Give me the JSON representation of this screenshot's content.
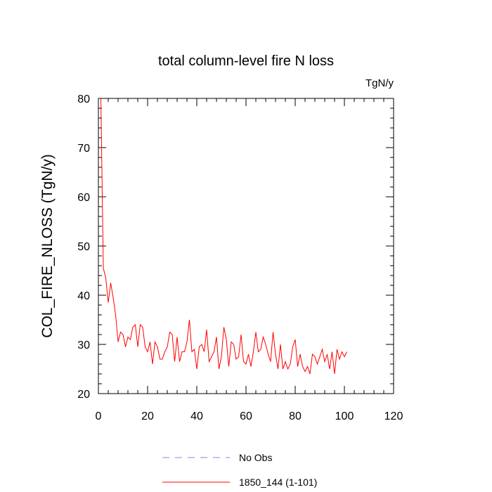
{
  "chart_data": {
    "type": "line",
    "title": "total column-level fire N loss",
    "units_label": "TgN/y",
    "xlabel": "",
    "ylabel": "COL_FIRE_NLOSS  (TgN/y)",
    "xlim": [
      0,
      120
    ],
    "ylim": [
      20,
      80
    ],
    "x_ticks": [
      0,
      20,
      40,
      60,
      80,
      100,
      120
    ],
    "y_ticks": [
      20,
      30,
      40,
      50,
      60,
      70,
      80
    ],
    "x_tick_labels": [
      "0",
      "20",
      "40",
      "60",
      "80",
      "100",
      "120"
    ],
    "y_tick_labels": [
      "20",
      "30",
      "40",
      "50",
      "60",
      "70",
      "80"
    ],
    "grid": false,
    "legend_position": "bottom-center",
    "series": [
      {
        "name": "No Obs",
        "color": "#8080ff",
        "style": "dashed",
        "x": [],
        "values": []
      },
      {
        "name": "1850_144 (1-101)",
        "color": "#ff0000",
        "style": "solid",
        "x": [
          1,
          2,
          3,
          4,
          5,
          6,
          7,
          8,
          9,
          10,
          11,
          12,
          13,
          14,
          15,
          16,
          17,
          18,
          19,
          20,
          21,
          22,
          23,
          24,
          25,
          26,
          27,
          28,
          29,
          30,
          31,
          32,
          33,
          34,
          35,
          36,
          37,
          38,
          39,
          40,
          41,
          42,
          43,
          44,
          45,
          46,
          47,
          48,
          49,
          50,
          51,
          52,
          53,
          54,
          55,
          56,
          57,
          58,
          59,
          60,
          61,
          62,
          63,
          64,
          65,
          66,
          67,
          68,
          69,
          70,
          71,
          72,
          73,
          74,
          75,
          76,
          77,
          78,
          79,
          80,
          81,
          82,
          83,
          84,
          85,
          86,
          87,
          88,
          89,
          90,
          91,
          92,
          93,
          94,
          95,
          96,
          97,
          98,
          99,
          100,
          101
        ],
        "values": [
          80,
          45.5,
          43.5,
          38.5,
          42.5,
          39.5,
          36,
          30.5,
          32.5,
          32,
          29.5,
          31.5,
          31,
          33.5,
          34,
          29.5,
          34,
          33.5,
          29.5,
          28.5,
          30.5,
          26,
          30.5,
          29.5,
          27,
          27,
          28.5,
          29.5,
          32.5,
          32,
          26.5,
          31.5,
          26.5,
          28.5,
          28.5,
          30.5,
          35,
          28.5,
          29,
          25,
          29.5,
          30,
          28.5,
          33,
          26.5,
          27.5,
          28.5,
          31.5,
          25,
          27.5,
          33.5,
          31,
          25.5,
          30.5,
          30,
          27,
          27.5,
          32,
          26.5,
          26,
          28,
          25.5,
          28.5,
          32.5,
          28.5,
          29,
          31.5,
          30,
          28,
          26.5,
          32.5,
          28,
          25,
          30,
          25,
          26.5,
          25,
          26,
          29.5,
          31,
          25.5,
          28,
          25.5,
          24.5,
          25.5,
          24,
          28,
          27.5,
          26,
          27.5,
          29,
          26.5,
          28,
          25,
          28.5,
          24,
          29,
          27,
          28.5,
          27.5,
          28.5
        ]
      }
    ]
  }
}
